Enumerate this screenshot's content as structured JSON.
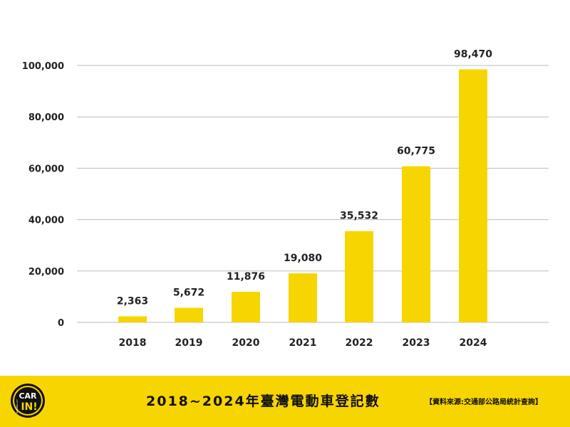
{
  "chart_data": {
    "type": "bar",
    "categories": [
      "2018",
      "2019",
      "2020",
      "2021",
      "2022",
      "2023",
      "2024"
    ],
    "values": [
      2363,
      5672,
      11876,
      19080,
      35532,
      60775,
      98470
    ],
    "data_labels": [
      "2,363",
      "5,672",
      "11,876",
      "19,080",
      "35,532",
      "60,775",
      "98,470"
    ],
    "y_ticks": [
      0,
      20000,
      40000,
      60000,
      80000,
      100000
    ],
    "y_tick_labels": [
      "0",
      "20,000",
      "40,000",
      "60,000",
      "80,000",
      "100,000"
    ],
    "ylim": [
      0,
      100000
    ],
    "grid": true,
    "bar_color": "#f7d500",
    "grid_color": "#bbbbbb"
  },
  "footer": {
    "title": "2018~2024年臺灣電動車登記數",
    "source": "【資料來源:交通部公路局統計查詢】",
    "background_color": "#f7d500"
  },
  "logo": {
    "text_top": "CAR",
    "text_side": "PARKING LOT",
    "text_bottom": "IN!"
  }
}
